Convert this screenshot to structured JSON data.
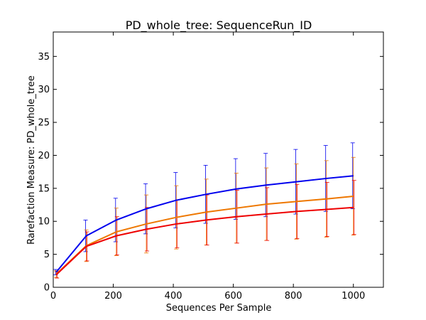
{
  "chart_data": {
    "type": "line",
    "title": "PD_whole_tree: SequenceRun_ID",
    "xlabel": "Sequences Per Sample",
    "ylabel": "Rarefaction Measure: PD_whole_tree",
    "xlim": [
      0,
      1100
    ],
    "ylim": [
      0,
      38.7
    ],
    "x_ticks": [
      "0",
      "200",
      "400",
      "600",
      "800",
      "1000"
    ],
    "y_ticks": [
      "0",
      "5",
      "10",
      "15",
      "20",
      "25",
      "30",
      "35"
    ],
    "x_tick_values": [
      0,
      200,
      400,
      600,
      800,
      1000
    ],
    "y_tick_values": [
      0,
      5,
      10,
      15,
      20,
      25,
      30,
      35
    ],
    "grid": false,
    "x": [
      10,
      110,
      210,
      310,
      410,
      510,
      610,
      710,
      810,
      910,
      1000
    ],
    "series": [
      {
        "color": "#0000ee",
        "values": [
          2.3,
          7.8,
          10.2,
          11.9,
          13.2,
          14.1,
          14.9,
          15.5,
          16.0,
          16.5,
          16.9
        ],
        "err": [
          0.4,
          2.4,
          3.3,
          3.8,
          4.2,
          4.4,
          4.6,
          4.8,
          4.9,
          5.0,
          5.0
        ]
      },
      {
        "color": "#ee7700",
        "values": [
          2.0,
          6.3,
          8.4,
          9.6,
          10.6,
          11.4,
          12.0,
          12.6,
          13.0,
          13.4,
          13.8
        ],
        "err": [
          0.5,
          2.4,
          3.6,
          4.4,
          4.8,
          5.0,
          5.3,
          5.5,
          5.7,
          5.8,
          5.9
        ]
      },
      {
        "color": "#ee0000",
        "values": [
          1.9,
          6.2,
          7.8,
          8.8,
          9.6,
          10.2,
          10.7,
          11.1,
          11.5,
          11.8,
          12.1
        ],
        "err": [
          0.5,
          2.2,
          2.9,
          3.3,
          3.6,
          3.8,
          4.0,
          4.0,
          4.1,
          4.1,
          4.1
        ]
      }
    ]
  }
}
